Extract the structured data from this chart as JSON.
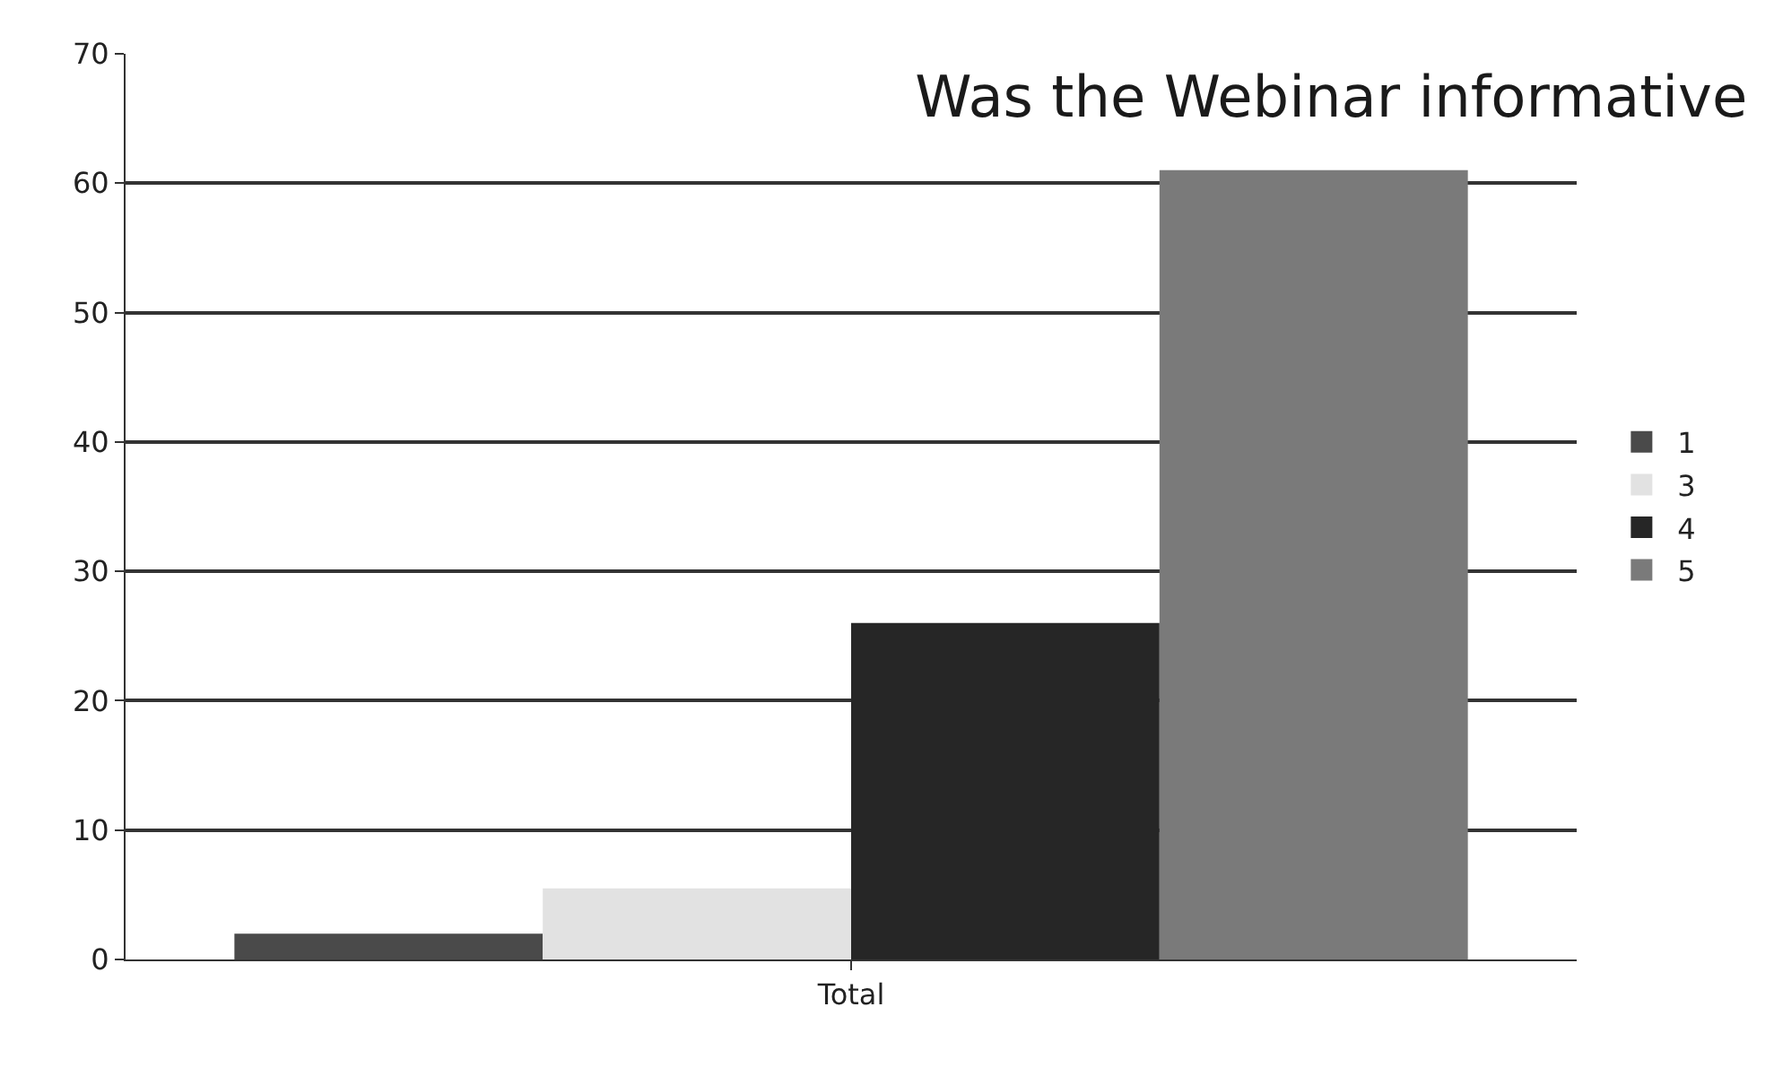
{
  "chart_data": {
    "type": "bar",
    "title": "Was the Webinar informative",
    "categories": [
      "Total"
    ],
    "series": [
      {
        "name": "1",
        "color": "#4a4a4a",
        "values": [
          2
        ]
      },
      {
        "name": "3",
        "color": "#e2e2e2",
        "values": [
          5.5
        ]
      },
      {
        "name": "4",
        "color": "#262626",
        "values": [
          26
        ]
      },
      {
        "name": "5",
        "color": "#7a7a7a",
        "values": [
          61
        ]
      }
    ],
    "ylim": [
      0,
      70
    ],
    "yticks": [
      0,
      10,
      20,
      30,
      40,
      50,
      60,
      70
    ],
    "grid": "y",
    "legend": "right"
  }
}
